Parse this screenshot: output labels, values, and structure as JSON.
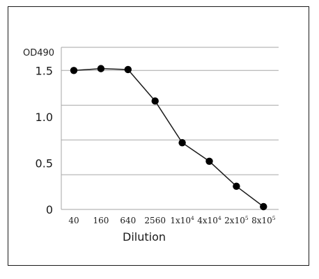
{
  "chart_data": {
    "type": "line",
    "ylabel": "OD490",
    "xlabel": "Dilution",
    "categories": [
      {
        "base": "40",
        "sup": ""
      },
      {
        "base": "160",
        "sup": ""
      },
      {
        "base": "640",
        "sup": ""
      },
      {
        "base": "2560",
        "sup": ""
      },
      {
        "base": "1x10",
        "sup": "4"
      },
      {
        "base": "4x10",
        "sup": "4"
      },
      {
        "base": "2x10",
        "sup": "5"
      },
      {
        "base": "8x10",
        "sup": "5"
      }
    ],
    "values": [
      1.5,
      1.52,
      1.51,
      1.17,
      0.72,
      0.52,
      0.25,
      0.03
    ],
    "ylim": [
      0,
      1.75
    ],
    "yticks": [
      {
        "value": 0,
        "label": "0"
      },
      {
        "value": 0.5,
        "label": "0.5"
      },
      {
        "value": 1.0,
        "label": "1.0"
      },
      {
        "value": 1.5,
        "label": "1.5"
      }
    ],
    "gridlines": [
      0.375,
      0.75,
      1.125,
      1.5,
      1.75
    ],
    "grid": true,
    "legend": "none",
    "colors": {
      "line": "#1a1a1a",
      "marker": "#000000",
      "grid": "#a6a6a6"
    }
  }
}
